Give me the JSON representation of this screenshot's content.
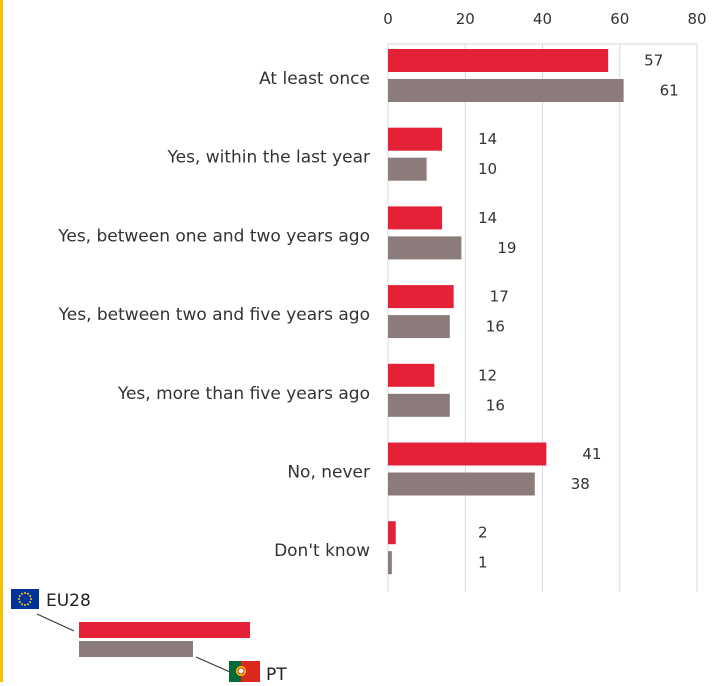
{
  "chart_data": {
    "type": "bar",
    "orientation": "horizontal",
    "categories": [
      "At least once",
      "Yes, within the last year",
      "Yes, between one and two years ago",
      "Yes, between two and five years ago",
      "Yes, more than five years ago",
      "No, never",
      "Don't know"
    ],
    "series": [
      {
        "name": "EU28",
        "values": [
          57,
          14,
          14,
          17,
          12,
          41,
          2
        ]
      },
      {
        "name": "PT",
        "values": [
          61,
          10,
          19,
          16,
          16,
          38,
          1
        ]
      }
    ],
    "xlim": [
      0,
      80
    ],
    "ticks": [
      0,
      20,
      40,
      60,
      80
    ],
    "grid": true,
    "legend_position": "bottom-left",
    "colors": {
      "EU28": "#e32237",
      "PT": "#8c7b7b",
      "grid": "#d9d9d9",
      "left_rule": "#f2c200"
    }
  },
  "legend": {
    "eu_label": "EU28",
    "pt_label": "PT",
    "eu_flag_icon": "eu-flag-icon",
    "pt_flag_icon": "portugal-flag-icon"
  }
}
